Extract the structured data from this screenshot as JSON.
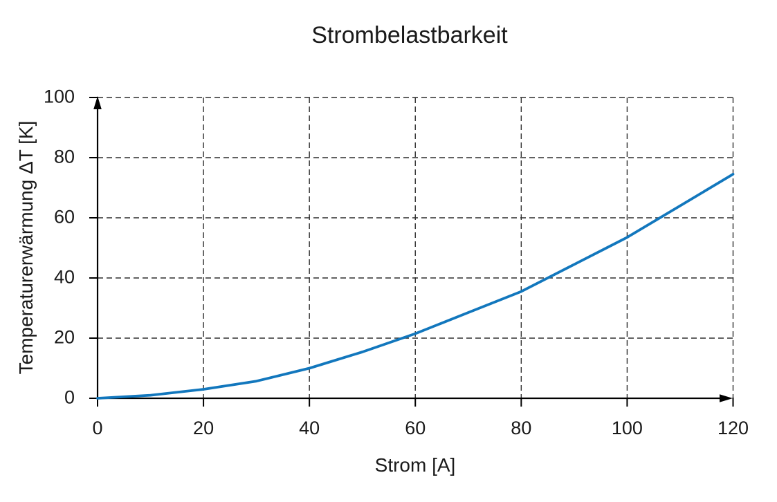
{
  "title": "Strombelastbarkeit",
  "chart_data": {
    "type": "line",
    "title": "Strombelastbarkeit",
    "xlabel": "Strom [A]",
    "ylabel": "Temperaturerwärmung ΔT [K]",
    "x": [
      0,
      10,
      20,
      30,
      40,
      50,
      60,
      70,
      80,
      90,
      100,
      110,
      120
    ],
    "series": [
      {
        "name": "Temperaturerwärmung",
        "values": [
          0,
          1,
          3,
          5.7,
          10,
          15.4,
          21.5,
          28.5,
          35.5,
          44.5,
          53.5,
          64,
          74.5
        ],
        "color": "#1277bd"
      }
    ],
    "xlim": [
      0,
      120
    ],
    "ylim": [
      0,
      100
    ],
    "x_ticks": [
      0,
      20,
      40,
      60,
      80,
      100,
      120
    ],
    "y_ticks": [
      0,
      20,
      40,
      60,
      80,
      100
    ],
    "grid": "dashed",
    "legend": "none",
    "axis_arrows": true
  },
  "colors": {
    "line": "#1277bd",
    "grid": "#2d2d2d",
    "axis": "#000000",
    "text": "#1a1a1a",
    "background": "#ffffff"
  }
}
